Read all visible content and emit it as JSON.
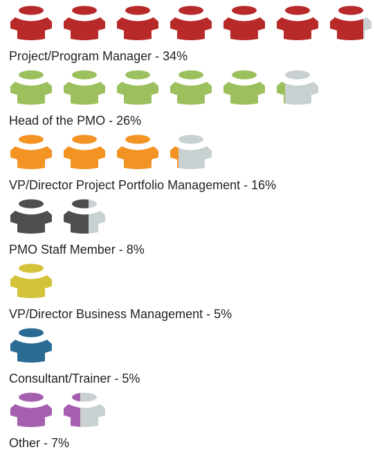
{
  "chart_data": {
    "type": "pictograph",
    "labels": [
      "Project/Program Manager - 34%",
      "Head of the PMO - 26%",
      "VP/Director Project Portfolio Management - 16%",
      "PMO Staff Member - 8%",
      "VP/Director Business Management - 5%",
      "Consultant/Trainer - 5%",
      "Other - 7%"
    ],
    "values": [
      34,
      26,
      16,
      8,
      5,
      5,
      7
    ],
    "colors": [
      "#b82a2a",
      "#9dc05e",
      "#f39323",
      "#4d4e50",
      "#d4c33a",
      "#2b6b94",
      "#a45fae"
    ],
    "empty_color": "#c8d0d2",
    "unit": 5
  }
}
